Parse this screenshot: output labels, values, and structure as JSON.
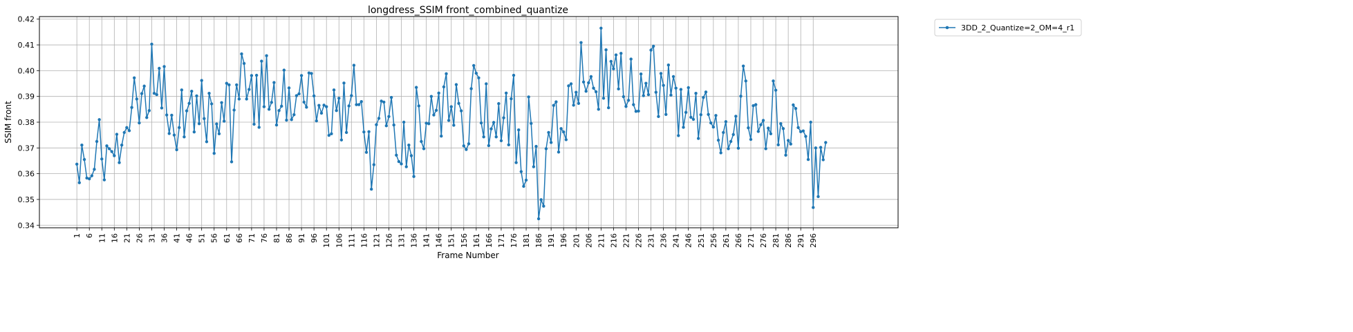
{
  "chart_data": {
    "type": "line",
    "title": "longdress_SSIM front_combined_quantize",
    "xlabel": "Frame Number",
    "ylabel": "SSIM front",
    "ylim": [
      0.339,
      0.421
    ],
    "yticks": [
      0.34,
      0.35,
      0.36,
      0.37,
      0.38,
      0.39,
      0.4,
      0.41,
      0.42
    ],
    "ytick_labels": [
      "0.34",
      "0.35",
      "0.36",
      "0.37",
      "0.38",
      "0.39",
      "0.40",
      "0.41",
      "0.42"
    ],
    "xlim": [
      -14,
      330
    ],
    "xticks": [
      1,
      6,
      11,
      16,
      21,
      26,
      31,
      36,
      41,
      46,
      51,
      56,
      61,
      66,
      71,
      76,
      81,
      86,
      91,
      96,
      101,
      106,
      111,
      116,
      121,
      126,
      131,
      136,
      141,
      146,
      151,
      156,
      161,
      166,
      171,
      176,
      181,
      186,
      191,
      196,
      201,
      206,
      211,
      216,
      221,
      226,
      231,
      236,
      241,
      246,
      251,
      256,
      261,
      266,
      271,
      276,
      281,
      286,
      291,
      296
    ],
    "grid": true,
    "legend_position": "outside-top-right",
    "series": [
      {
        "name": "3DD_2_Quantize=2_OM=4_r1",
        "color": "#1f77b4",
        "x_start": 1,
        "values": [
          0.3637,
          0.3565,
          0.3711,
          0.3655,
          0.3583,
          0.358,
          0.3592,
          0.3617,
          0.3725,
          0.381,
          0.3657,
          0.3576,
          0.3708,
          0.3697,
          0.3686,
          0.367,
          0.3753,
          0.3643,
          0.3711,
          0.376,
          0.3779,
          0.3767,
          0.3857,
          0.3972,
          0.389,
          0.3797,
          0.3911,
          0.394,
          0.3818,
          0.3845,
          0.4103,
          0.3912,
          0.3907,
          0.4009,
          0.3855,
          0.4016,
          0.3828,
          0.3756,
          0.3827,
          0.375,
          0.3693,
          0.3779,
          0.3925,
          0.3743,
          0.3844,
          0.3873,
          0.392,
          0.3762,
          0.3902,
          0.3794,
          0.3962,
          0.3814,
          0.3724,
          0.3912,
          0.3871,
          0.3679,
          0.3793,
          0.3755,
          0.3876,
          0.3804,
          0.3951,
          0.3945,
          0.3646,
          0.3847,
          0.3945,
          0.389,
          0.4065,
          0.4028,
          0.389,
          0.3927,
          0.3981,
          0.3792,
          0.3982,
          0.378,
          0.4037,
          0.386,
          0.4058,
          0.385,
          0.3877,
          0.3954,
          0.3789,
          0.3845,
          0.3862,
          0.4002,
          0.3808,
          0.3933,
          0.381,
          0.3829,
          0.3903,
          0.391,
          0.3981,
          0.3878,
          0.3858,
          0.3991,
          0.3989,
          0.3902,
          0.3805,
          0.3865,
          0.3835,
          0.3866,
          0.386,
          0.3749,
          0.3755,
          0.3925,
          0.3845,
          0.3893,
          0.3731,
          0.3952,
          0.376,
          0.3863,
          0.3903,
          0.4021,
          0.3868,
          0.3868,
          0.388,
          0.3762,
          0.3683,
          0.3763,
          0.354,
          0.3635,
          0.379,
          0.3815,
          0.3882,
          0.3878,
          0.3786,
          0.3822,
          0.3896,
          0.3789,
          0.3672,
          0.3647,
          0.3638,
          0.38,
          0.3627,
          0.3711,
          0.367,
          0.3589,
          0.3935,
          0.3863,
          0.3725,
          0.3697,
          0.3796,
          0.3794,
          0.39,
          0.3828,
          0.3846,
          0.3913,
          0.3746,
          0.3937,
          0.3988,
          0.3807,
          0.386,
          0.3788,
          0.3946,
          0.3873,
          0.3844,
          0.3708,
          0.3694,
          0.3716,
          0.393,
          0.402,
          0.399,
          0.3972,
          0.3797,
          0.3743,
          0.3949,
          0.3709,
          0.3774,
          0.3799,
          0.3743,
          0.3872,
          0.3728,
          0.3817,
          0.3913,
          0.3712,
          0.3891,
          0.3982,
          0.3643,
          0.377,
          0.3608,
          0.3551,
          0.3575,
          0.3898,
          0.3795,
          0.3627,
          0.3706,
          0.3425,
          0.3499,
          0.3474,
          0.3697,
          0.376,
          0.3721,
          0.3865,
          0.3879,
          0.3684,
          0.3775,
          0.3762,
          0.3732,
          0.3941,
          0.3949,
          0.3866,
          0.3916,
          0.3873,
          0.4109,
          0.3956,
          0.392,
          0.3953,
          0.3977,
          0.3932,
          0.3918,
          0.385,
          0.4165,
          0.3893,
          0.4081,
          0.3856,
          0.4036,
          0.4007,
          0.4061,
          0.3929,
          0.4067,
          0.3899,
          0.3861,
          0.3885,
          0.4045,
          0.3868,
          0.3842,
          0.3843,
          0.3987,
          0.3903,
          0.3951,
          0.3907,
          0.408,
          0.4095,
          0.3916,
          0.3822,
          0.3989,
          0.3943,
          0.383,
          0.4022,
          0.3905,
          0.3977,
          0.3932,
          0.3748,
          0.3927,
          0.378,
          0.3838,
          0.3934,
          0.3819,
          0.3811,
          0.3912,
          0.3737,
          0.3829,
          0.3896,
          0.3917,
          0.383,
          0.3797,
          0.3781,
          0.3826,
          0.373,
          0.3681,
          0.376,
          0.3802,
          0.3697,
          0.3725,
          0.3752,
          0.3823,
          0.3699,
          0.3901,
          0.4018,
          0.396,
          0.3778,
          0.3733,
          0.3864,
          0.3868,
          0.3764,
          0.379,
          0.3807,
          0.3697,
          0.3777,
          0.3755,
          0.396,
          0.3924,
          0.3712,
          0.3794,
          0.3775,
          0.3672,
          0.3729,
          0.3715,
          0.3867,
          0.3853,
          0.3779,
          0.3763,
          0.3766,
          0.3745,
          0.3655,
          0.38,
          0.3469,
          0.37,
          0.3511,
          0.3702,
          0.3654,
          0.3721
        ]
      }
    ]
  }
}
